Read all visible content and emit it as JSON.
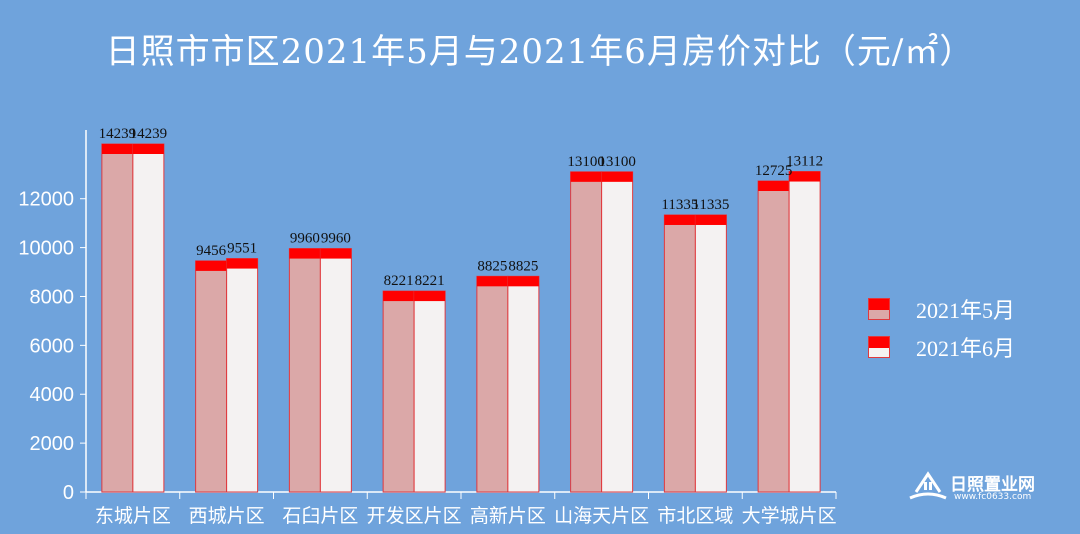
{
  "chart_data": {
    "type": "bar",
    "title": "日照市市区2021年5月与2021年6月房价对比（元/㎡）",
    "categories": [
      "东城片区",
      "西城片区",
      "石臼片区",
      "开发区片区",
      "高新片区",
      "山海天片区",
      "市北区域",
      "大学城片区"
    ],
    "series": [
      {
        "name": "2021年5月",
        "values": [
          14239,
          9456,
          9960,
          8221,
          8825,
          13100,
          11335,
          12725
        ],
        "color": "#dba8a8"
      },
      {
        "name": "2021年6月",
        "values": [
          14239,
          9551,
          9960,
          8221,
          8825,
          13100,
          11335,
          13112
        ],
        "color": "#f4f2f2"
      }
    ],
    "ylim": [
      0,
      14239
    ],
    "yticks": [
      "0",
      "2000",
      "4000",
      "6000",
      "8000",
      "10000",
      "12000"
    ],
    "grid": false,
    "legend_position": "right",
    "colors": {
      "background": "#6fa3dc",
      "cap": "#ff0000",
      "outline": "#e0393e",
      "axis": "#ffffff"
    }
  },
  "watermark": {
    "brand": "日照置业网",
    "url": "www.fc0633.com"
  }
}
